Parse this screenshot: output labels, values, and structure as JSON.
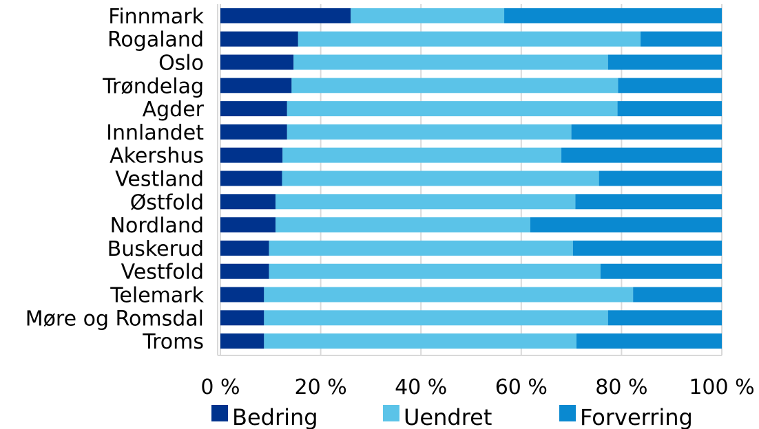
{
  "chart_data": {
    "type": "bar",
    "orientation": "horizontal",
    "stacked": true,
    "percent_stacked": true,
    "categories": [
      "Finnmark",
      "Rogaland",
      "Oslo",
      "Trøndelag",
      "Agder",
      "Innlandet",
      "Akershus",
      "Vestland",
      "Østfold",
      "Nordland",
      "Buskerud",
      "Vestfold",
      "Telemark",
      "Møre og Romsdal",
      "Troms"
    ],
    "series": [
      {
        "name": "Bedring",
        "color": "#00338d",
        "values": [
          26,
          15.5,
          14.6,
          14.2,
          13.3,
          13.3,
          12.4,
          12.3,
          11,
          11,
          9.7,
          9.7,
          8.7,
          8.7,
          8.7
        ]
      },
      {
        "name": "Uendret",
        "color": "#5bc3e8",
        "values": [
          30.6,
          68.3,
          62.7,
          65.1,
          65.9,
          56.7,
          55.6,
          63.2,
          59.8,
          50.8,
          60.6,
          66.1,
          73.6,
          68.6,
          62.3
        ]
      },
      {
        "name": "Forverring",
        "color": "#0a89d0",
        "values": [
          43.4,
          16.2,
          22.7,
          20.7,
          20.8,
          30,
          32,
          24.5,
          29.2,
          38.2,
          29.7,
          24.2,
          17.7,
          22.7,
          29
        ]
      }
    ],
    "xlim": [
      0,
      100
    ],
    "x_ticks": [
      "0 %",
      "20 %",
      "40 %",
      "60 %",
      "80 %",
      "100 %"
    ],
    "grid": true,
    "legend_position": "bottom"
  }
}
